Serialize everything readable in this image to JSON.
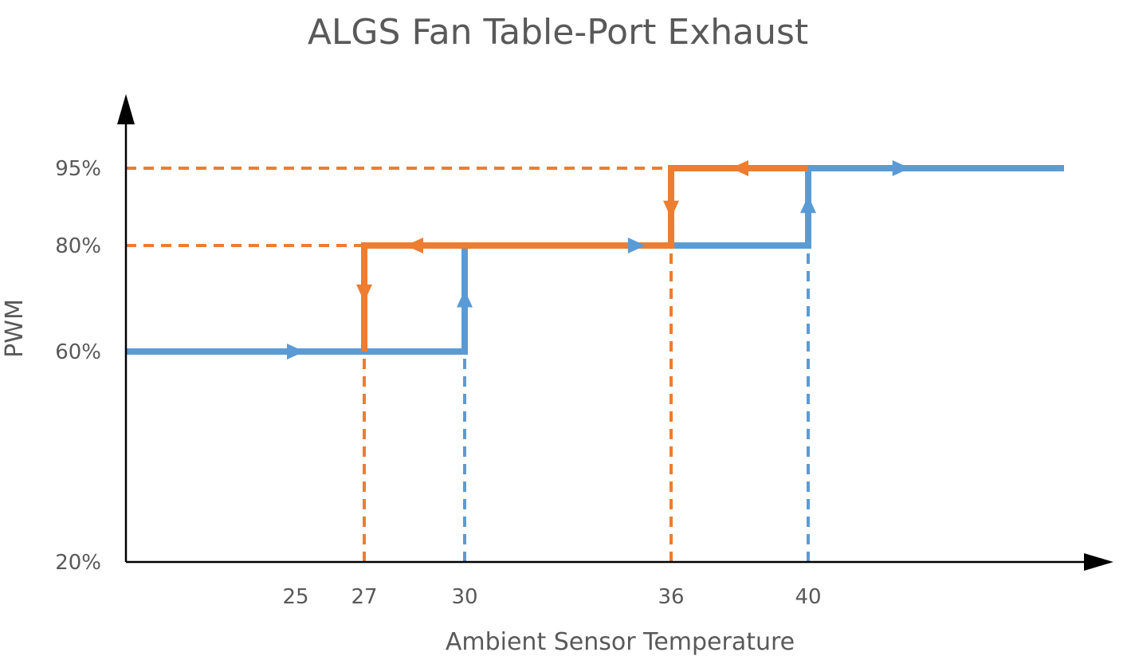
{
  "chart_data": {
    "type": "line",
    "title": "ALGS Fan Table-Port Exhaust",
    "xlabel": "Ambient Sensor Temperature",
    "ylabel": "PWM",
    "x_ticks": [
      25,
      27,
      30,
      36,
      40
    ],
    "y_ticks": [
      "20%",
      "60%",
      "80%",
      "95%"
    ],
    "y_tick_values": [
      20,
      60,
      80,
      95
    ],
    "grid": false,
    "legend": "none",
    "colors": {
      "increasing": "#5B9BD5",
      "decreasing": "#ED7D31",
      "axis": "#000000",
      "text": "#595959"
    },
    "series": [
      {
        "color": "#5B9BD5",
        "direction": "increasing",
        "points": [
          [
            22,
            60
          ],
          [
            30,
            60
          ],
          [
            30,
            80
          ],
          [
            40,
            80
          ],
          [
            40,
            95
          ],
          [
            51,
            95
          ]
        ],
        "arrows": [
          {
            "at": [
              25,
              60
            ],
            "dir": "right"
          },
          {
            "at": [
              30,
              70
            ],
            "dir": "up"
          },
          {
            "at": [
              35,
              80
            ],
            "dir": "right"
          },
          {
            "at": [
              40,
              88
            ],
            "dir": "up"
          },
          {
            "at": [
              44,
              95
            ],
            "dir": "right"
          }
        ],
        "guides": [
          {
            "x": 30,
            "from": 20,
            "to": 60
          },
          {
            "x": 40,
            "from": 20,
            "to": 80
          }
        ]
      },
      {
        "color": "#ED7D31",
        "direction": "decreasing",
        "points": [
          [
            40,
            95
          ],
          [
            36,
            95
          ],
          [
            36,
            80
          ],
          [
            30,
            80
          ],
          [
            27,
            80
          ],
          [
            27,
            60
          ]
        ],
        "arrows": [
          {
            "at": [
              38,
              95
            ],
            "dir": "left"
          },
          {
            "at": [
              36,
              87
            ],
            "dir": "down"
          },
          {
            "at": [
              28.5,
              80
            ],
            "dir": "left"
          },
          {
            "at": [
              27,
              71
            ],
            "dir": "down"
          }
        ],
        "guides": [
          {
            "x": 27,
            "from": 20,
            "to": 60
          },
          {
            "x": 36,
            "from": 20,
            "to": 80
          },
          {
            "y": 80,
            "from": 22,
            "to": 27
          },
          {
            "y": 95,
            "from": 22,
            "to": 36
          }
        ]
      }
    ]
  }
}
